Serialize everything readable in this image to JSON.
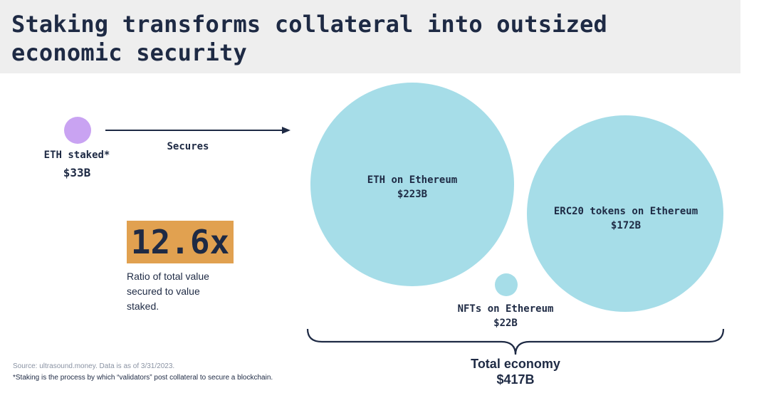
{
  "title_line1": "Staking transforms collateral into outsized",
  "title_line2": "economic security",
  "eth_staked": {
    "label": "ETH staked*",
    "value": "$33B"
  },
  "arrow_label": "Secures",
  "ratio": {
    "value": "12.6x",
    "description": "Ratio of total value secured to value staked."
  },
  "bubbles": [
    {
      "label": "ETH on Ethereum",
      "value": "$223B"
    },
    {
      "label": "ERC20 tokens on Ethereum",
      "value": "$172B"
    },
    {
      "label": "NFTs on Ethereum",
      "value": "$22B"
    }
  ],
  "total": {
    "label": "Total economy",
    "value": "$417B"
  },
  "footnotes": {
    "source": "Source: ultrasound.money. Data is as of 3/31/2023.",
    "definition": "*Staking is the process by which “validators” post collateral to secure a blockchain."
  },
  "colors": {
    "navy": "#1e2a44",
    "purple": "#c9a3f2",
    "teal": "#a6dde8",
    "orange": "#e1a150",
    "header_bg": "#eeeeee"
  }
}
